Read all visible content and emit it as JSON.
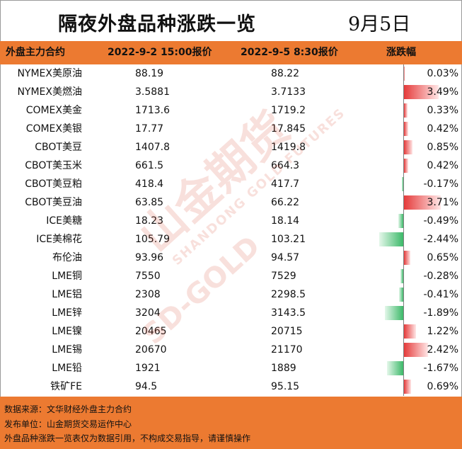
{
  "title": "隔夜外盘品种涨跌一览",
  "date": "9月5日",
  "header": {
    "name": "外盘主力合约",
    "price1": "2022-9-2 15:00报价",
    "price2": "2022-9-5 8:30报价",
    "change": "涨跌幅"
  },
  "rows": [
    {
      "name": "NYMEX美原油",
      "price1": "88.19",
      "price2": "88.22",
      "change": "0.03%",
      "change_value": 0.03
    },
    {
      "name": "NYMEX美燃油",
      "price1": "3.5881",
      "price2": "3.7133",
      "change": "3.49%",
      "change_value": 3.49
    },
    {
      "name": "COMEX美金",
      "price1": "1713.6",
      "price2": "1719.2",
      "change": "0.33%",
      "change_value": 0.33
    },
    {
      "name": "COMEX美银",
      "price1": "17.77",
      "price2": "17.845",
      "change": "0.42%",
      "change_value": 0.42
    },
    {
      "name": "CBOT美豆",
      "price1": "1407.8",
      "price2": "1419.8",
      "change": "0.85%",
      "change_value": 0.85
    },
    {
      "name": "CBOT美玉米",
      "price1": "661.5",
      "price2": "664.3",
      "change": "0.42%",
      "change_value": 0.42
    },
    {
      "name": "CBOT美豆粕",
      "price1": "418.4",
      "price2": "417.7",
      "change": "-0.17%",
      "change_value": -0.17
    },
    {
      "name": "CBOT美豆油",
      "price1": "63.85",
      "price2": "66.22",
      "change": "3.71%",
      "change_value": 3.71
    },
    {
      "name": "ICE美糖",
      "price1": "18.23",
      "price2": "18.14",
      "change": "-0.49%",
      "change_value": -0.49
    },
    {
      "name": "ICE美棉花",
      "price1": "105.79",
      "price2": "103.21",
      "change": "-2.44%",
      "change_value": -2.44
    },
    {
      "name": "布伦油",
      "price1": "93.96",
      "price2": "94.57",
      "change": "0.65%",
      "change_value": 0.65
    },
    {
      "name": "LME铜",
      "price1": "7550",
      "price2": "7529",
      "change": "-0.28%",
      "change_value": -0.28
    },
    {
      "name": "LME铝",
      "price1": "2308",
      "price2": "2298.5",
      "change": "-0.41%",
      "change_value": -0.41
    },
    {
      "name": "LME锌",
      "price1": "3204",
      "price2": "3143.5",
      "change": "-1.89%",
      "change_value": -1.89
    },
    {
      "name": "LME镍",
      "price1": "20465",
      "price2": "20715",
      "change": "1.22%",
      "change_value": 1.22
    },
    {
      "name": "LME锡",
      "price1": "20670",
      "price2": "21170",
      "change": "2.42%",
      "change_value": 2.42
    },
    {
      "name": "LME铅",
      "price1": "1921",
      "price2": "1889",
      "change": "-1.67%",
      "change_value": -1.67
    },
    {
      "name": "铁矿FE",
      "price1": "94.5",
      "price2": "95.15",
      "change": "0.69%",
      "change_value": 0.69
    }
  ],
  "footer": {
    "source": "数据来源：文华财经外盘主力合约",
    "publisher": "发布单位：山金期货交易运作中心",
    "disclaimer": "外盘品种涨跌一览表仅为数据引用，不构成交易指导，请谨慎操作"
  },
  "watermark": {
    "brand_cn": "山金期货",
    "brand_en_1": "SHANDONG GOLD FUTURES",
    "brand_en_2": "SD-GOLD"
  },
  "colors": {
    "accent": "#ec7a31",
    "positive": "#e53b3b",
    "negative": "#3cb969"
  }
}
